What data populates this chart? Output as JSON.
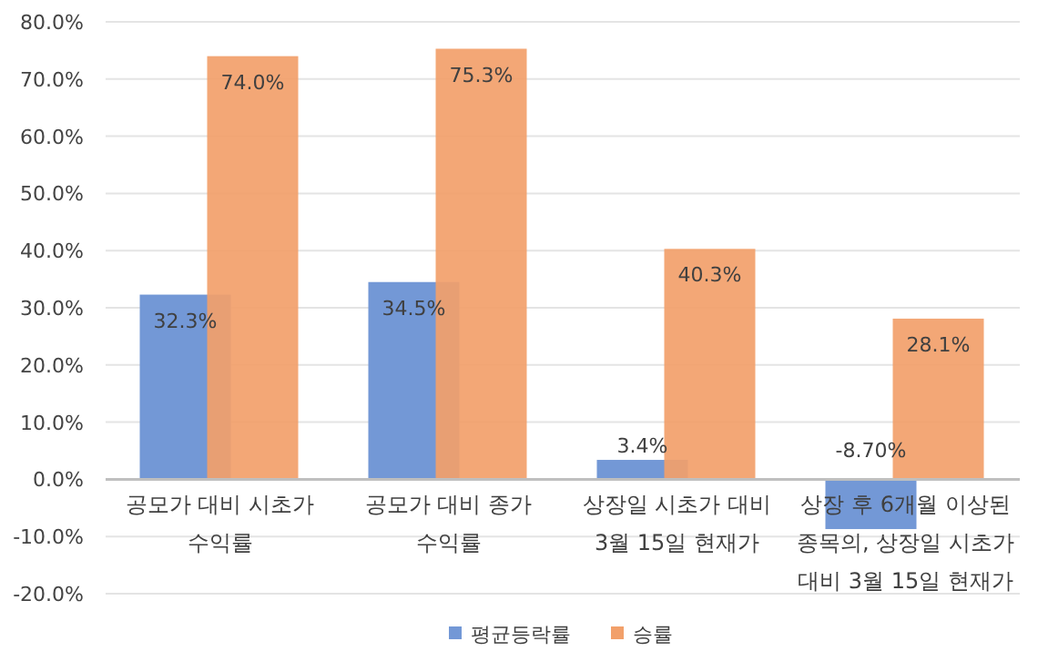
{
  "chart_data": {
    "type": "bar",
    "categories": [
      "공모가 대비 시초가 수익률",
      "공모가 대비 종가 수익률",
      "상장일 시초가 대비 3월 15일 현재가",
      "상장 후 6개월 이상된 종목의, 상장일 시초가 대비 3월 15일 현재가"
    ],
    "series": [
      {
        "name": "평균등락률",
        "color": "#7398d6",
        "values": [
          32.3,
          34.5,
          3.4,
          -8.7
        ],
        "value_labels": [
          "32.3%",
          "34.5%",
          "3.4%",
          "-8.70%"
        ]
      },
      {
        "name": "승률",
        "color": "#f2a06a",
        "values": [
          74.0,
          75.3,
          40.3,
          28.1
        ],
        "value_labels": [
          "74.0%",
          "75.3%",
          "40.3%",
          "28.1%"
        ]
      }
    ],
    "ylim": [
      -20,
      80
    ],
    "yticks": [
      {
        "value": -20,
        "label": "-20.0%"
      },
      {
        "value": -10,
        "label": "-10.0%"
      },
      {
        "value": 0,
        "label": "0.0%"
      },
      {
        "value": 10,
        "label": "10.0%"
      },
      {
        "value": 20,
        "label": "20.0%"
      },
      {
        "value": 30,
        "label": "30.0%"
      },
      {
        "value": 40,
        "label": "40.0%"
      },
      {
        "value": 50,
        "label": "50.0%"
      },
      {
        "value": 60,
        "label": "60.0%"
      },
      {
        "value": 70,
        "label": "70.0%"
      },
      {
        "value": 80,
        "label": "80.0%"
      }
    ],
    "grid": "y",
    "legend": "bottom"
  }
}
